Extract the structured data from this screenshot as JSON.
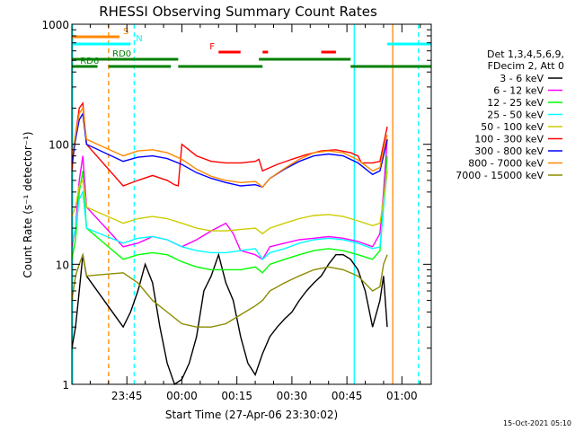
{
  "chart_data": {
    "type": "line",
    "title": "RHESSI Observing Summary Count Rates",
    "xlabel": "Start Time (27-Apr-06 23:30:02)",
    "ylabel": "Count Rate (s⁻¹ detector⁻¹)",
    "y_scale": "log",
    "ylim": [
      1,
      1000
    ],
    "x_unit": "minutes since 23:30:02",
    "xlim": [
      0,
      98
    ],
    "x_tick_labels": [
      "23:45",
      "00:00",
      "00:15",
      "00:30",
      "00:45",
      "01:00"
    ],
    "x_tick_values": [
      15,
      30,
      45,
      60,
      75,
      90
    ],
    "y_tick_labels": [
      "1",
      "10",
      "100",
      "1000"
    ],
    "y_tick_values": [
      1,
      10,
      100,
      1000
    ],
    "grid": false,
    "legend_position": "right",
    "legend_header": [
      "Det 1,3,4,5,6,9,",
      "FDecim 2, Att 0"
    ],
    "date_stamp": "15-Oct-2021 05:10",
    "series": [
      {
        "name": "3 - 6 keV",
        "color": "#000000",
        "x": [
          0,
          1,
          2,
          3,
          4,
          14,
          16,
          18,
          20,
          22,
          24,
          26,
          28,
          30,
          32,
          34,
          36,
          38,
          40,
          42,
          44,
          46,
          48,
          50,
          52,
          54,
          56,
          58,
          60,
          62,
          64,
          66,
          68,
          70,
          72,
          74,
          76,
          78,
          80,
          82,
          84,
          85,
          86
        ],
        "y": [
          2,
          3,
          6,
          12,
          8,
          3,
          4,
          6,
          10,
          7,
          3,
          1.5,
          1,
          1.1,
          1.5,
          2.5,
          6,
          8,
          12,
          7,
          5,
          2.5,
          1.5,
          1.2,
          1.8,
          2.5,
          3,
          3.5,
          4,
          5,
          6,
          7,
          8,
          10,
          12,
          12,
          11,
          9,
          6,
          3,
          5,
          8,
          3
        ]
      },
      {
        "name": "6 - 12 keV",
        "color": "#ff00ff",
        "x": [
          0,
          1,
          2,
          3,
          4,
          14,
          18,
          22,
          26,
          30,
          34,
          38,
          42,
          44,
          46,
          50,
          52,
          54,
          58,
          62,
          66,
          70,
          74,
          78,
          82,
          84,
          85,
          86
        ],
        "y": [
          14,
          20,
          50,
          80,
          30,
          14,
          15,
          17,
          16,
          14,
          16,
          19,
          22,
          18,
          13,
          12,
          11,
          14,
          15,
          16,
          16.5,
          17,
          16.5,
          15.5,
          14,
          18,
          40,
          110
        ]
      },
      {
        "name": "12 - 25 keV",
        "color": "#00ff00",
        "x": [
          0,
          1,
          2,
          3,
          4,
          14,
          18,
          22,
          26,
          30,
          34,
          38,
          42,
          46,
          50,
          52,
          54,
          58,
          62,
          66,
          70,
          74,
          78,
          82,
          84,
          85,
          86
        ],
        "y": [
          11,
          16,
          40,
          60,
          20,
          11,
          12,
          12.5,
          12,
          10.5,
          9.5,
          9,
          9,
          9,
          9.5,
          8.5,
          10,
          11,
          12,
          13,
          13.5,
          13,
          12,
          11,
          13,
          30,
          80
        ]
      },
      {
        "name": "25 - 50 keV",
        "color": "#00ffff",
        "x": [
          0,
          1,
          2,
          3,
          4,
          14,
          18,
          22,
          26,
          30,
          34,
          38,
          42,
          46,
          50,
          52,
          54,
          58,
          62,
          66,
          70,
          74,
          78,
          82,
          84,
          85,
          86
        ],
        "y": [
          15,
          20,
          35,
          40,
          20,
          15,
          16.5,
          17,
          16,
          14,
          13,
          12.5,
          12.5,
          13,
          13.5,
          11,
          12.5,
          13.5,
          15,
          16,
          16.5,
          16,
          15,
          13.5,
          14,
          30,
          60
        ]
      },
      {
        "name": "50 - 100 keV",
        "color": "#cccc00",
        "x": [
          0,
          1,
          2,
          3,
          4,
          14,
          18,
          22,
          26,
          30,
          34,
          38,
          42,
          46,
          50,
          52,
          54,
          58,
          62,
          66,
          70,
          74,
          78,
          82,
          84,
          85,
          86
        ],
        "y": [
          25,
          30,
          45,
          50,
          30,
          22,
          24,
          25,
          24,
          22,
          20,
          19,
          19,
          19.5,
          20,
          18,
          20,
          22,
          24,
          25.5,
          26,
          25,
          23,
          21,
          22,
          35,
          60
        ]
      },
      {
        "name": "100 - 300 keV",
        "color": "#ff0000",
        "x": [
          0,
          1,
          2,
          3,
          4,
          14,
          18,
          22,
          26,
          28,
          29,
          30,
          34,
          38,
          42,
          46,
          50,
          51,
          52,
          56,
          60,
          64,
          68,
          72,
          76,
          78,
          79,
          80,
          82,
          84,
          85,
          86
        ],
        "y": [
          60,
          120,
          200,
          220,
          100,
          45,
          50,
          55,
          50,
          46,
          45,
          100,
          80,
          72,
          70,
          70,
          72,
          75,
          60,
          68,
          75,
          82,
          88,
          90,
          85,
          80,
          70,
          70,
          70,
          72,
          100,
          140
        ]
      },
      {
        "name": "300 - 800 keV",
        "color": "#0000ff",
        "x": [
          0,
          1,
          2,
          3,
          4,
          14,
          18,
          22,
          26,
          30,
          34,
          38,
          42,
          46,
          50,
          52,
          54,
          58,
          62,
          66,
          70,
          74,
          78,
          82,
          84,
          85,
          86
        ],
        "y": [
          70,
          110,
          160,
          180,
          100,
          72,
          78,
          80,
          76,
          68,
          58,
          52,
          48,
          45,
          46,
          44,
          52,
          62,
          72,
          80,
          83,
          80,
          70,
          56,
          60,
          80,
          110
        ]
      },
      {
        "name": "800 - 7000 keV",
        "color": "#ff8800",
        "x": [
          0,
          1,
          2,
          3,
          4,
          14,
          18,
          22,
          26,
          30,
          34,
          38,
          42,
          46,
          50,
          52,
          54,
          58,
          62,
          66,
          70,
          74,
          78,
          82,
          84,
          85,
          86
        ],
        "y": [
          80,
          120,
          180,
          200,
          110,
          80,
          88,
          90,
          85,
          75,
          62,
          54,
          50,
          48,
          49,
          44,
          52,
          63,
          75,
          85,
          88,
          85,
          74,
          60,
          64,
          90,
          120
        ]
      },
      {
        "name": "7000 - 15000 keV",
        "color": "#8b8b00",
        "x": [
          0,
          1,
          2,
          3,
          4,
          14,
          18,
          22,
          26,
          30,
          34,
          38,
          42,
          46,
          50,
          52,
          54,
          58,
          62,
          66,
          70,
          74,
          78,
          82,
          84,
          85,
          86
        ],
        "y": [
          5,
          8,
          10,
          12,
          8,
          8.5,
          7,
          5,
          4,
          3.2,
          3,
          3,
          3.2,
          3.8,
          4.5,
          5,
          6,
          7,
          8,
          9,
          9.5,
          9,
          8,
          6,
          6.5,
          10,
          12
        ]
      }
    ],
    "flags": [
      {
        "label": "S",
        "color": "#ff8800",
        "segments": [
          [
            0,
            13
          ]
        ]
      },
      {
        "label": "N",
        "color": "#00ffff",
        "segments": [
          [
            0,
            16
          ],
          [
            86,
            98
          ]
        ]
      },
      {
        "label": "F",
        "color": "#ff0000",
        "segments": [
          [
            40,
            46
          ],
          [
            52,
            53.5
          ],
          [
            68,
            72
          ]
        ]
      },
      {
        "label": "RD0",
        "color": "#008000",
        "segments": [
          [
            0,
            29
          ],
          [
            51,
            76
          ]
        ]
      },
      {
        "label": "RD6",
        "color": "#008000",
        "segments": [
          [
            0,
            7
          ],
          [
            10,
            27
          ],
          [
            29,
            52
          ],
          [
            76,
            98
          ]
        ]
      }
    ],
    "vertical_markers": [
      {
        "x": 0.2,
        "color": "#00ffff",
        "style": "solid"
      },
      {
        "x": 10,
        "color": "#ff8800",
        "style": "dashed"
      },
      {
        "x": 17,
        "color": "#00ffff",
        "style": "dashed"
      },
      {
        "x": 77,
        "color": "#00ffff",
        "style": "solid"
      },
      {
        "x": 87.5,
        "color": "#ff8800",
        "style": "solid"
      },
      {
        "x": 94.5,
        "color": "#00ffff",
        "style": "dashed"
      }
    ]
  }
}
